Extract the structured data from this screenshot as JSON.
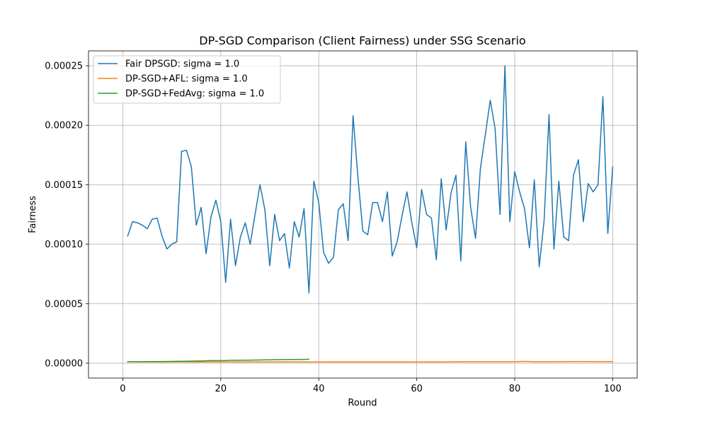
{
  "chart_data": {
    "type": "line",
    "title": "DP-SGD Comparison (Client Fairness) under SSG Scenario",
    "xlabel": "Round",
    "ylabel": "Fairness",
    "xlim": [
      -7,
      105
    ],
    "ylim": [
      -1.25e-05,
      0.0002625
    ],
    "xticks": [
      0,
      20,
      40,
      60,
      80,
      100
    ],
    "xtick_labels": [
      "0",
      "20",
      "40",
      "60",
      "80",
      "100"
    ],
    "yticks": [
      0,
      5e-05,
      0.0001,
      0.00015,
      0.0002,
      0.00025
    ],
    "ytick_labels": [
      "0.00000",
      "0.00005",
      "0.00010",
      "0.00015",
      "0.00020",
      "0.00025"
    ],
    "grid": true,
    "legend_position": "upper-left",
    "series": [
      {
        "name": "Fair DPSGD: sigma = 1.0",
        "color": "#1f77b4",
        "x": [
          1,
          2,
          3,
          4,
          5,
          6,
          7,
          8,
          9,
          10,
          11,
          12,
          13,
          14,
          15,
          16,
          17,
          18,
          19,
          20,
          21,
          22,
          23,
          24,
          25,
          26,
          27,
          28,
          29,
          30,
          31,
          32,
          33,
          34,
          35,
          36,
          37,
          38,
          39,
          40,
          41,
          42,
          43,
          44,
          45,
          46,
          47,
          48,
          49,
          50,
          51,
          52,
          53,
          54,
          55,
          56,
          57,
          58,
          59,
          60,
          61,
          62,
          63,
          64,
          65,
          66,
          67,
          68,
          69,
          70,
          71,
          72,
          73,
          74,
          75,
          76,
          77,
          78,
          79,
          80,
          81,
          82,
          83,
          84,
          85,
          86,
          87,
          88,
          89,
          90,
          91,
          92,
          93,
          94,
          95,
          96,
          97,
          98,
          99,
          100
        ],
        "values": [
          0.000107,
          0.000119,
          0.000118,
          0.000116,
          0.000113,
          0.000121,
          0.000122,
          0.000107,
          9.6e-05,
          0.0001,
          0.000102,
          0.000178,
          0.000179,
          0.000165,
          0.000116,
          0.000131,
          9.2e-05,
          0.000123,
          0.000137,
          0.000119,
          6.8e-05,
          0.000121,
          8.2e-05,
          0.000106,
          0.000118,
          0.0001,
          0.000125,
          0.00015,
          0.000129,
          8.2e-05,
          0.000125,
          0.000103,
          0.000109,
          8e-05,
          0.000119,
          0.000106,
          0.00013,
          5.9e-05,
          0.000153,
          0.000135,
          9.3e-05,
          8.4e-05,
          8.9e-05,
          0.000129,
          0.000134,
          0.000103,
          0.000208,
          0.000156,
          0.000111,
          0.000108,
          0.000135,
          0.000135,
          0.000119,
          0.000144,
          9e-05,
          0.000102,
          0.000124,
          0.000144,
          0.000118,
          9.7e-05,
          0.000146,
          0.000125,
          0.000122,
          8.7e-05,
          0.000155,
          0.000112,
          0.000143,
          0.000158,
          8.6e-05,
          0.000186,
          0.000131,
          0.000105,
          0.000164,
          0.000192,
          0.000221,
          0.000197,
          0.000125,
          0.00025,
          0.000119,
          0.000161,
          0.000144,
          0.00013,
          9.7e-05,
          0.000154,
          8.1e-05,
          0.00012,
          0.000209,
          9.6e-05,
          0.000153,
          0.000106,
          0.000103,
          0.000158,
          0.000171,
          0.000119,
          0.000151,
          0.000144,
          0.00015,
          0.000224,
          0.000109,
          0.000165
        ]
      },
      {
        "name": "DP-SGD+AFL: sigma = 1.0",
        "color": "#ff7f0e",
        "x": [
          1,
          5,
          10,
          15,
          20,
          25,
          30,
          35,
          40,
          45,
          50,
          55,
          60,
          65,
          70,
          75,
          80,
          82,
          84,
          90,
          94,
          96,
          100
        ],
        "values": [
          1.2e-06,
          1.1e-06,
          1.1e-06,
          1.1e-06,
          1.1e-06,
          1.1e-06,
          1.1e-06,
          1.1e-06,
          1.1e-06,
          1.1e-06,
          1.1e-06,
          1.1e-06,
          1.1e-06,
          1.1e-06,
          1.2e-06,
          1.2e-06,
          1.2e-06,
          1.5e-06,
          1.2e-06,
          1.3e-06,
          1.4e-06,
          1.3e-06,
          1.3e-06
        ]
      },
      {
        "name": "DP-SGD+FedAvg: sigma = 1.0",
        "color": "#2ca02c",
        "x": [
          1,
          4,
          8,
          12,
          16,
          18,
          20,
          22,
          24,
          26,
          28,
          30,
          32,
          34,
          36,
          38
        ],
        "values": [
          1.2e-06,
          1.2e-06,
          1.4e-06,
          1.6e-06,
          1.9e-06,
          2.2e-06,
          2.1e-06,
          2.4e-06,
          2.5e-06,
          2.6e-06,
          2.7e-06,
          2.9e-06,
          3e-06,
          3.1e-06,
          3.1e-06,
          3.3e-06
        ]
      }
    ]
  }
}
